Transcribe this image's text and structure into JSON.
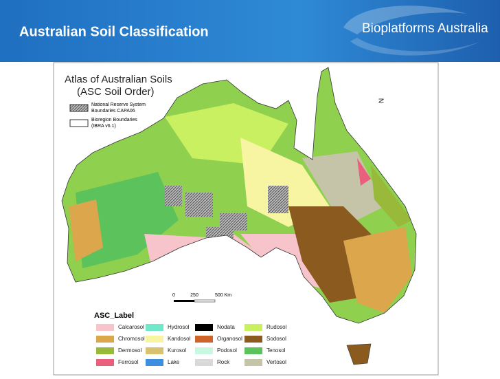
{
  "header": {
    "title": "Australian Soil Classification",
    "logo": "Bioplatforms Australia"
  },
  "map": {
    "title_lines": [
      "Atlas of Australian Soils",
      "(ASC Soil Order)"
    ],
    "overlay_legend": [
      {
        "lines": [
          "National Reserve System",
          "Boundaries CAPA06"
        ]
      },
      {
        "lines": [
          "Bioregion Boundaries",
          "(IBRA v6.1)"
        ]
      }
    ],
    "scale_labels": [
      "0",
      "250",
      "500 Km"
    ],
    "north": "N"
  },
  "legend": {
    "title": "ASC_Label",
    "items": [
      {
        "label": "Calcarosol",
        "color": "#f7c4cb"
      },
      {
        "label": "Chromosol",
        "color": "#dba64c"
      },
      {
        "label": "Dermosol",
        "color": "#98b93a"
      },
      {
        "label": "Ferrosol",
        "color": "#e9607c"
      },
      {
        "label": "Hydrosol",
        "color": "#72e8ca"
      },
      {
        "label": "Kandosol",
        "color": "#f8f5a2"
      },
      {
        "label": "Kurosol",
        "color": "#d8c270"
      },
      {
        "label": "Lake",
        "color": "#3c8fe0"
      },
      {
        "label": "Nodata",
        "color": "#000000"
      },
      {
        "label": "Organosol",
        "color": "#cf642a"
      },
      {
        "label": "Podosol",
        "color": "#c8f8e0"
      },
      {
        "label": "Rock",
        "color": "#d9d9d9"
      },
      {
        "label": "Rudosol",
        "color": "#c9f060"
      },
      {
        "label": "Sodosol",
        "color": "#8b5a1e"
      },
      {
        "label": "Tenosol",
        "color": "#5cc25c"
      },
      {
        "label": "Vertosol",
        "color": "#c5c3a8"
      }
    ]
  }
}
